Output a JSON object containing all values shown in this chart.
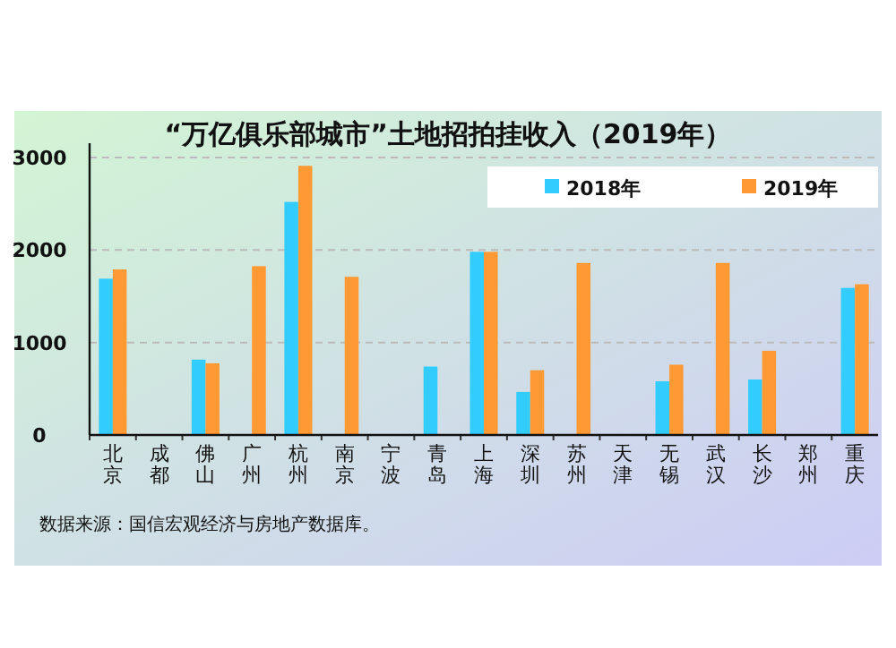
{
  "chart_data": {
    "type": "bar",
    "title": "“万亿俱乐部城市”土地招拍挂收入（2019年）",
    "categories": [
      "北京",
      "成都",
      "佛山",
      "广州",
      "杭州",
      "南京",
      "宁波",
      "青岛",
      "上海",
      "深圳",
      "苏州",
      "天津",
      "无锡",
      "武汉",
      "长沙",
      "郑州",
      "重庆"
    ],
    "series": [
      {
        "name": "2018年",
        "color": "#33ccff",
        "values": [
          1690,
          null,
          815,
          null,
          2520,
          null,
          null,
          740,
          1980,
          465,
          null,
          null,
          580,
          null,
          600,
          null,
          1590
        ]
      },
      {
        "name": "2019年",
        "color": "#ff9933",
        "values": [
          1790,
          null,
          775,
          1825,
          2910,
          1710,
          null,
          null,
          1980,
          700,
          1860,
          null,
          760,
          1860,
          910,
          null,
          1630
        ]
      }
    ],
    "ylim": [
      0,
      3000
    ],
    "yticks": [
      0,
      1000,
      2000,
      3000
    ],
    "grid": "y",
    "legend": "top right",
    "annotations": [
      "数据来源：国信宏观经济与房地产数据库。"
    ]
  }
}
